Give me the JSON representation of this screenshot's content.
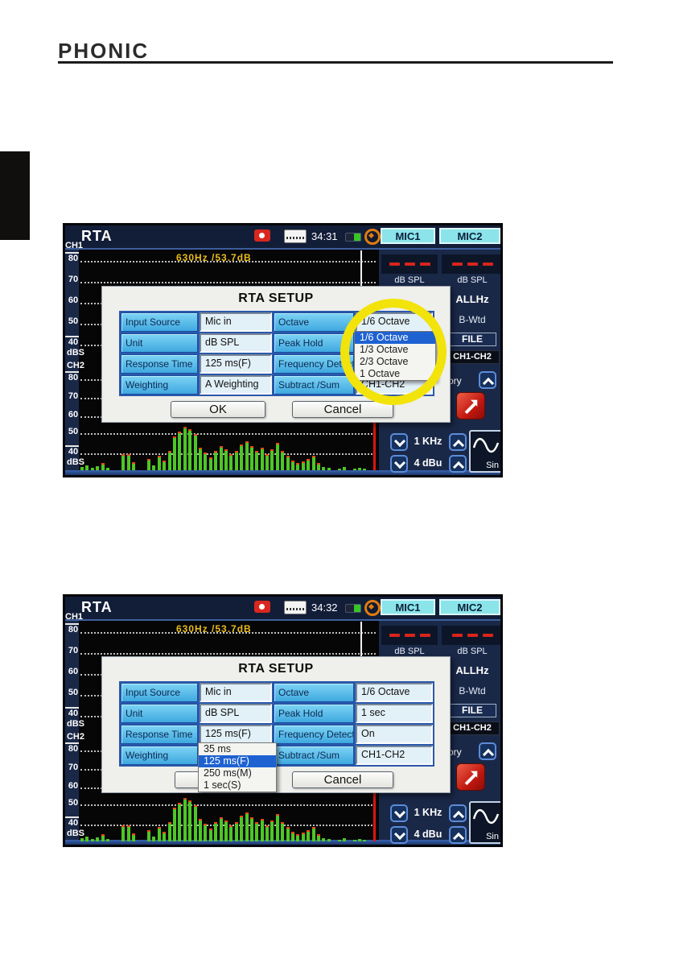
{
  "page": {
    "brand": "PHONIC"
  },
  "shared": {
    "titlebar": {
      "app": "RTA",
      "mic1": "MIC1",
      "mic2": "MIC2"
    },
    "readout": "630Hz /53.7dB",
    "axis": {
      "ch1": "CH1",
      "ch2": "CH2",
      "t80": "80",
      "t70": "70",
      "t60": "60",
      "t50": "50",
      "t40": "40",
      "dbs": "dBS"
    },
    "panel": {
      "db_spl": "dB SPL",
      "allhz": "ALLHz",
      "bwtd": "B-Wtd",
      "file": "FILE",
      "ch1ch2": "CH1-CH2",
      "memory_partial": "ory"
    },
    "controls": {
      "freq": "1 KHz",
      "level": "4 dBu",
      "wave": "Sin"
    },
    "spectrum": [
      4,
      6,
      3,
      5,
      7,
      3,
      0,
      0,
      18,
      18,
      8,
      0,
      0,
      12,
      6,
      16,
      10,
      22,
      40,
      46,
      52,
      49,
      43,
      26,
      20,
      14,
      22,
      28,
      24,
      18,
      22,
      30,
      34,
      28,
      22,
      26,
      18,
      24,
      32,
      22,
      16,
      10,
      7,
      9,
      12,
      16,
      7,
      4,
      3,
      0,
      2,
      4,
      0,
      2,
      3,
      2
    ]
  },
  "screen1": {
    "time": "34:31",
    "dialog": {
      "title": "RTA SETUP",
      "rows": [
        {
          "l1": "Input Source",
          "v1": "Mic in",
          "l2": "Octave",
          "v2": "1/6 Octave"
        },
        {
          "l1": "Unit",
          "v1": "dB SPL",
          "l2": "Peak Hold",
          "v2": ""
        },
        {
          "l1": "Response Time",
          "v1": "125 ms(F)",
          "l2": "Frequency Detect",
          "v2": ""
        },
        {
          "l1": "Weighting",
          "v1": "A Weighting",
          "l2": "Subtract /Sum",
          "v2": "CH1-CH2"
        }
      ],
      "ok": "OK",
      "cancel": "Cancel",
      "dropdown": {
        "items": [
          "1/6 Octave",
          "1/3 Octave",
          "2/3 Octave",
          "1 Octave"
        ],
        "selected_index": 0
      }
    }
  },
  "screen2": {
    "time": "34:32",
    "dialog": {
      "title": "RTA SETUP",
      "rows": [
        {
          "l1": "Input Source",
          "v1": "Mic in",
          "l2": "Octave",
          "v2": "1/6 Octave"
        },
        {
          "l1": "Unit",
          "v1": "dB SPL",
          "l2": "Peak Hold",
          "v2": "1 sec"
        },
        {
          "l1": "Response Time",
          "v1": "125 ms(F)",
          "l2": "Frequency Detect",
          "v2": "On"
        },
        {
          "l1": "Weighting",
          "v1": "",
          "l2": "Subtract /Sum",
          "v2": "CH1-CH2"
        }
      ],
      "cancel": "Cancel",
      "dropdown": {
        "items": [
          "35 ms",
          "125 ms(F)",
          "250 ms(M)",
          "1 sec(S)"
        ],
        "selected_index": 1
      }
    }
  }
}
